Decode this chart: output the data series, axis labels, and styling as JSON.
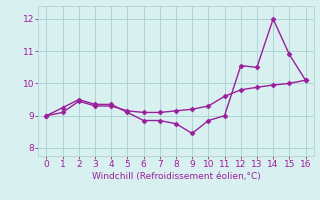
{
  "line1_x": [
    0,
    1,
    2,
    3,
    4,
    5,
    6,
    7,
    8,
    9,
    10,
    11,
    12,
    13,
    14,
    15,
    16
  ],
  "line1_y": [
    9.0,
    9.25,
    9.5,
    9.35,
    9.35,
    9.1,
    8.85,
    8.85,
    8.75,
    8.45,
    8.85,
    9.0,
    10.55,
    10.5,
    12.0,
    10.9,
    10.1
  ],
  "line2_x": [
    0,
    1,
    2,
    3,
    4,
    5,
    6,
    7,
    8,
    9,
    10,
    11,
    12,
    13,
    14,
    15,
    16
  ],
  "line2_y": [
    9.0,
    9.1,
    9.45,
    9.3,
    9.3,
    9.15,
    9.1,
    9.1,
    9.15,
    9.2,
    9.3,
    9.6,
    9.8,
    9.88,
    9.95,
    10.0,
    10.1
  ],
  "line_color": "#9B1F9B",
  "bg_color": "#D9F0F0",
  "grid_color": "#AED4D4",
  "xlabel": "Windchill (Refroidissement éolien,°C)",
  "xlabel_color": "#9B1F9B",
  "tick_color": "#9B1F9B",
  "ylim": [
    7.75,
    12.4
  ],
  "xlim": [
    -0.5,
    16.5
  ],
  "yticks": [
    8,
    9,
    10,
    11,
    12
  ],
  "xticks": [
    0,
    1,
    2,
    3,
    4,
    5,
    6,
    7,
    8,
    9,
    10,
    11,
    12,
    13,
    14,
    15,
    16
  ],
  "marker": "D",
  "markersize": 2.5,
  "linewidth": 1.0,
  "tick_fontsize": 6.5,
  "xlabel_fontsize": 6.5
}
